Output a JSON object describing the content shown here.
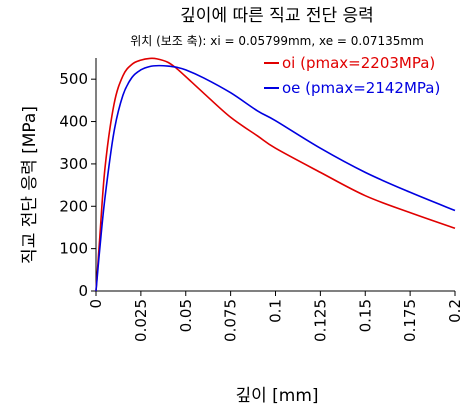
{
  "chart_data": {
    "type": "line",
    "title": "깊이에 따른 직교 전단 응력",
    "subtitle": "위치 (보조 축): xi = 0.05799mm, xe = 0.07135mm",
    "xlabel": "깊이 [mm]",
    "ylabel": "직교 전단 응력 [MPa]",
    "xlim": [
      0,
      0.2
    ],
    "ylim": [
      0,
      550
    ],
    "xticks": [
      "0",
      "0.025",
      "0.05",
      "0.075",
      "0.1",
      "0.125",
      "0.15",
      "0.175",
      "0.2"
    ],
    "yticks": [
      "0",
      "100",
      "200",
      "300",
      "400",
      "500"
    ],
    "grid": false,
    "legend_position": "top-right",
    "series": [
      {
        "name": "oi (pmax=2203MPa)",
        "color": "#e00000",
        "x": [
          0,
          0.002,
          0.005,
          0.01,
          0.015,
          0.02,
          0.025,
          0.03,
          0.034,
          0.04,
          0.045,
          0.05,
          0.06,
          0.075,
          0.09,
          0.1,
          0.125,
          0.15,
          0.175,
          0.2
        ],
        "y": [
          0,
          120,
          290,
          440,
          508,
          535,
          545,
          549,
          548,
          540,
          525,
          506,
          467,
          410,
          366,
          337,
          280,
          225,
          185,
          148
        ]
      },
      {
        "name": "oe (pmax=2142MPa)",
        "color": "#0000e0",
        "x": [
          0,
          0.002,
          0.005,
          0.01,
          0.015,
          0.02,
          0.025,
          0.03,
          0.035,
          0.04,
          0.045,
          0.05,
          0.06,
          0.075,
          0.09,
          0.1,
          0.125,
          0.15,
          0.175,
          0.2
        ],
        "y": [
          0,
          95,
          220,
          375,
          462,
          504,
          522,
          530,
          532,
          531,
          528,
          522,
          503,
          468,
          425,
          402,
          337,
          280,
          233,
          190
        ]
      }
    ]
  }
}
